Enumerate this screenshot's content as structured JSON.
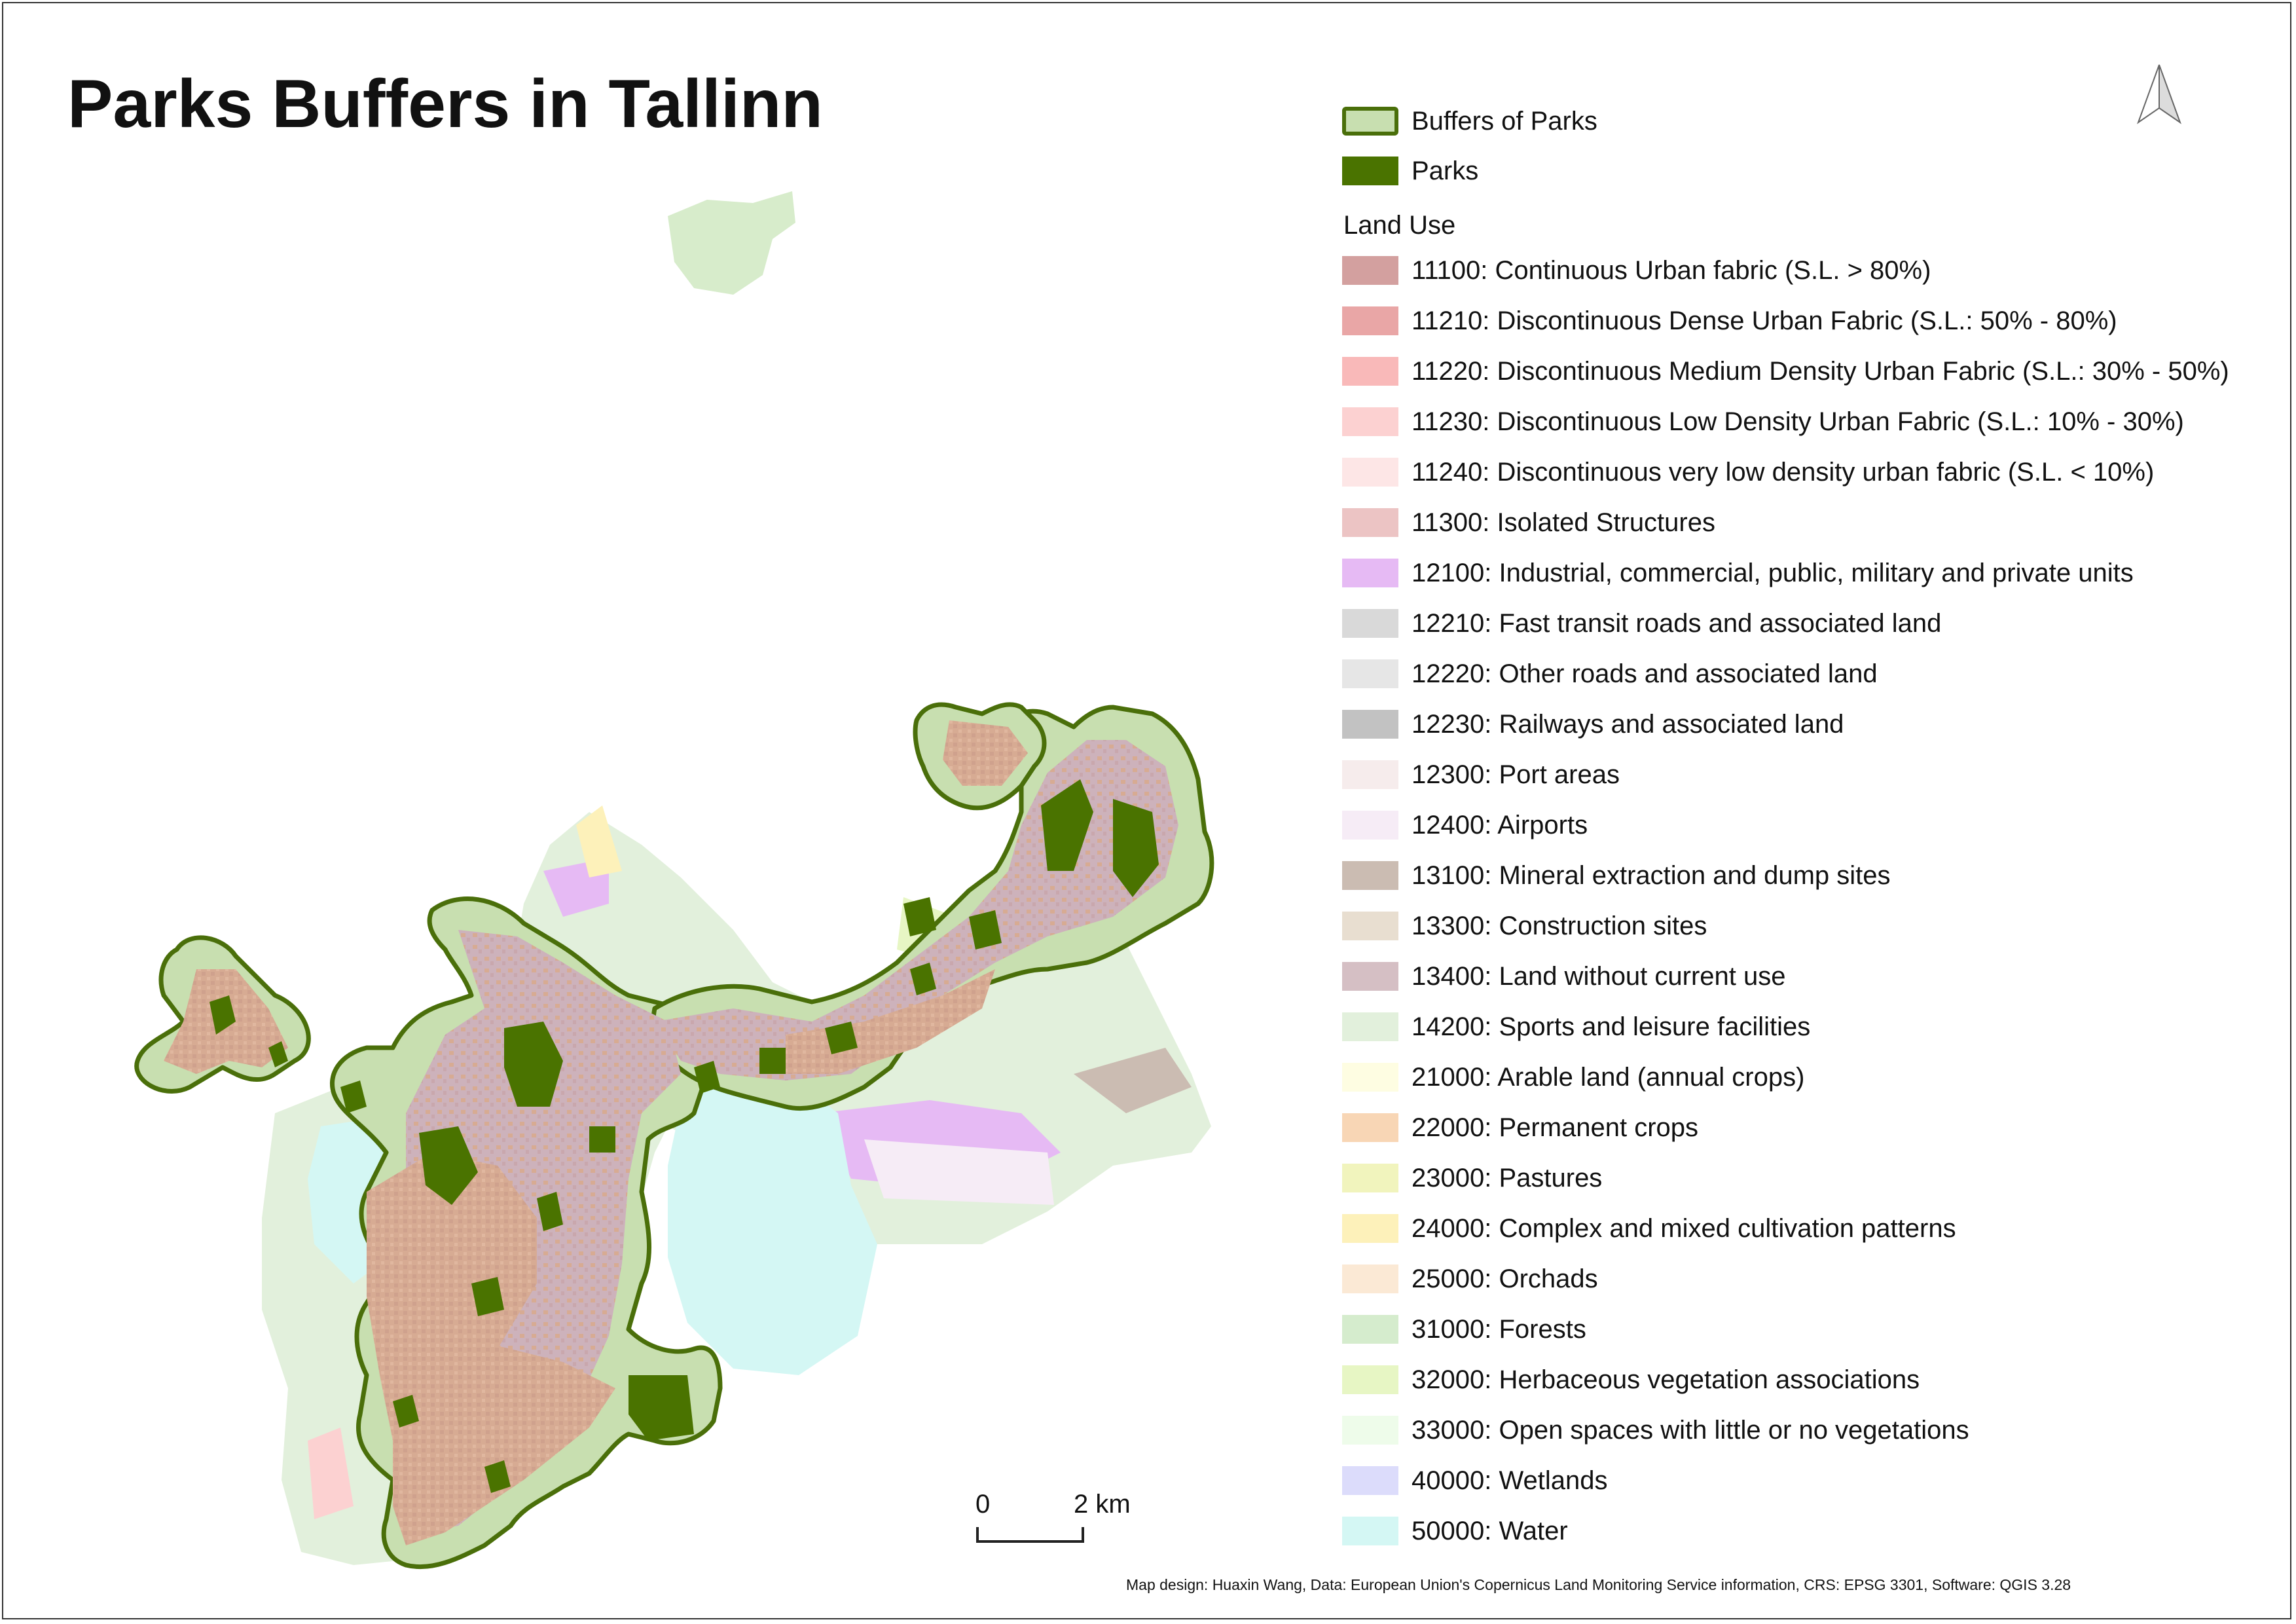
{
  "title": "Parks Buffers in Tallinn",
  "legend": {
    "buffers": {
      "label": "Buffers of Parks",
      "fill": "#c8dfb0",
      "stroke": "#4a6f0a"
    },
    "parks": {
      "label": "Parks",
      "fill": "#4a7300"
    },
    "land_use_heading": "Land Use",
    "classes": [
      {
        "label": "11100: Continuous Urban fabric (S.L. > 80%)",
        "color": "#d3a09f"
      },
      {
        "label": "11210: Discontinuous Dense Urban Fabric (S.L.: 50% - 80%)",
        "color": "#e9a6a6"
      },
      {
        "label": "11220: Discontinuous Medium Density Urban Fabric (S.L.: 30% - 50%)",
        "color": "#f9b9b9"
      },
      {
        "label": "11230: Discontinuous Low Density Urban Fabric (S.L.: 10% - 30%)",
        "color": "#fcd1d1"
      },
      {
        "label": "11240: Discontinuous very low density urban fabric (S.L. < 10%)",
        "color": "#fde6e6"
      },
      {
        "label": "11300: Isolated Structures",
        "color": "#ecc4c4"
      },
      {
        "label": "12100: Industrial, commercial, public, military and private units",
        "color": "#e6baf4"
      },
      {
        "label": "12210: Fast transit roads and associated land",
        "color": "#d9d9d9"
      },
      {
        "label": "12220: Other roads and associated land",
        "color": "#e6e6e6"
      },
      {
        "label": "12230: Railways and associated land",
        "color": "#c2c2c2"
      },
      {
        "label": "12300: Port areas",
        "color": "#f6ecec"
      },
      {
        "label": "12400: Airports",
        "color": "#f6ecf6"
      },
      {
        "label": "13100: Mineral extraction and dump sites",
        "color": "#cbbcb2"
      },
      {
        "label": "13300: Construction sites",
        "color": "#e8ded0"
      },
      {
        "label": "13400: Land without current use",
        "color": "#d5bfc4"
      },
      {
        "label": "14200: Sports and leisure facilities",
        "color": "#e2f0dc"
      },
      {
        "label": "21000: Arable land (annual crops)",
        "color": "#fefde2"
      },
      {
        "label": "22000: Permanent crops",
        "color": "#f8d6b5"
      },
      {
        "label": "23000: Pastures",
        "color": "#f1f4bd"
      },
      {
        "label": "24000: Complex and mixed cultivation patterns",
        "color": "#fdf1ba"
      },
      {
        "label": "25000: Orchads",
        "color": "#fbe9d5"
      },
      {
        "label": "31000: Forests",
        "color": "#d5eccd"
      },
      {
        "label": "32000: Herbaceous vegetation associations",
        "color": "#e7f6c4"
      },
      {
        "label": "33000: Open spaces with little or no vegetations",
        "color": "#eefcea"
      },
      {
        "label": "40000: Wetlands",
        "color": "#dcdcfb"
      },
      {
        "label": "50000: Water",
        "color": "#d4f7f4"
      }
    ]
  },
  "scale": {
    "start_label": "0",
    "end_label": "2 km"
  },
  "north_arrow": "north-arrow-icon",
  "credit": "Map design: Huaxin Wang, Data: European Union's Copernicus Land Monitoring Service information, CRS: EPSG 3301, Software: QGIS 3.28"
}
